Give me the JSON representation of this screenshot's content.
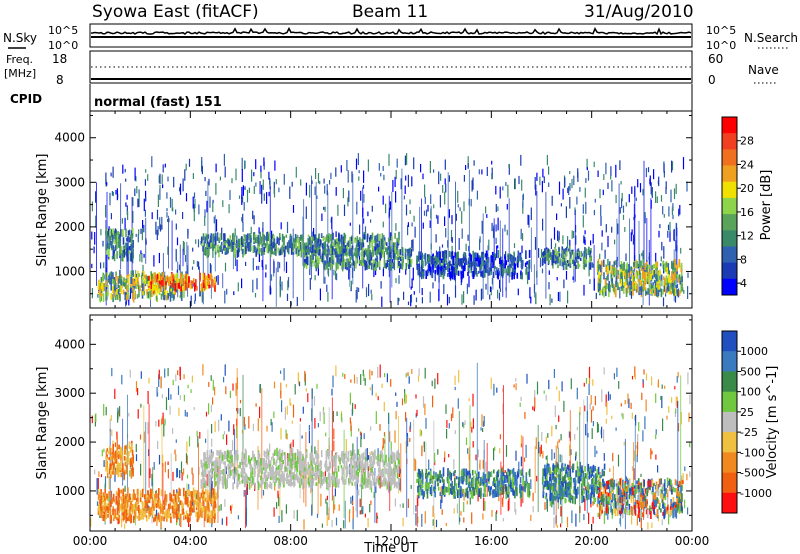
{
  "header": {
    "station": "Syowa East (fitACF)",
    "beam": "Beam 11",
    "date": "31/Aug/2010"
  },
  "noise_panel": {
    "left_label": "N.Sky",
    "right_label": "N.Search",
    "ticks_left": [
      "10^5",
      "10^0"
    ],
    "ticks_right": [
      "10^5",
      "10^0"
    ]
  },
  "freq_panel": {
    "left_label_1": "Freq.",
    "left_label_2": "[MHz]",
    "left_ticks": [
      "18",
      "8"
    ],
    "right_label": "Nave",
    "right_ticks": [
      "60",
      "0"
    ]
  },
  "cpid_panel": {
    "label": "CPID",
    "value": "normal (fast) 151"
  },
  "colors": {
    "power": [
      "#0000ff",
      "#1a3bb4",
      "#3060b0",
      "#3a8a6a",
      "#5aa35a",
      "#8ed44a",
      "#f0e000",
      "#f0a020",
      "#f07020",
      "#f04020",
      "#ff0000"
    ],
    "velocity": [
      "#2050c0",
      "#3a7abf",
      "#3a8a4a",
      "#70c840",
      "#bebebe",
      "#f0c040",
      "#f08a20",
      "#f06010",
      "#ff1010"
    ]
  },
  "chart_data": [
    {
      "type": "heatmap",
      "quantity": "Power",
      "ylabel": "Slant Range [km]",
      "xlabel": "Time UT",
      "x_ticks": [
        "00:00",
        "04:00",
        "08:00",
        "12:00",
        "16:00",
        "20:00",
        "00:00"
      ],
      "y_ticks": [
        1000,
        2000,
        3000,
        4000
      ],
      "xlim": [
        0,
        24
      ],
      "ylim": [
        180,
        4600
      ],
      "colorbar": {
        "label": "Power [dB]",
        "ticks": [
          "28",
          "24",
          "20",
          "16",
          "12",
          "8",
          "4"
        ],
        "range": [
          0,
          30
        ]
      },
      "echo_regions": [
        {
          "t0": 0.3,
          "t1": 3.8,
          "r0": 400,
          "r1": 950,
          "level": "high"
        },
        {
          "t0": 2.3,
          "t1": 5.0,
          "r0": 600,
          "r1": 900,
          "level": "peak"
        },
        {
          "t0": 0.6,
          "t1": 1.7,
          "r0": 1300,
          "r1": 1900,
          "level": "mid"
        },
        {
          "t0": 4.4,
          "t1": 12.3,
          "r0": 1400,
          "r1": 1800,
          "level": "mid"
        },
        {
          "t0": 8.5,
          "t1": 12.8,
          "r0": 1100,
          "r1": 1500,
          "level": "mid"
        },
        {
          "t0": 13.0,
          "t1": 17.5,
          "r0": 900,
          "r1": 1400,
          "level": "low"
        },
        {
          "t0": 18.0,
          "t1": 20.0,
          "r0": 1100,
          "r1": 1500,
          "level": "mid"
        },
        {
          "t0": 20.2,
          "t1": 23.6,
          "r0": 500,
          "r1": 1200,
          "level": "high"
        }
      ]
    },
    {
      "type": "heatmap",
      "quantity": "Velocity",
      "ylabel": "Slant Range [km]",
      "xlabel": "Time UT",
      "x_ticks": [
        "00:00",
        "04:00",
        "08:00",
        "12:00",
        "16:00",
        "20:00",
        "00:00"
      ],
      "y_ticks": [
        1000,
        2000,
        3000,
        4000
      ],
      "xlim": [
        0,
        24
      ],
      "ylim": [
        180,
        4600
      ],
      "colorbar": {
        "label": "Velocity [m s^-1]",
        "ticks": [
          "1000",
          "500",
          "100",
          "25",
          "-25",
          "-100",
          "-500",
          "-1000"
        ],
        "range": [
          -1000,
          1000
        ]
      },
      "echo_regions": [
        {
          "t0": 0.3,
          "t1": 5.0,
          "r0": 400,
          "r1": 1000,
          "level": "negative"
        },
        {
          "t0": 0.6,
          "t1": 1.7,
          "r0": 1300,
          "r1": 1900,
          "level": "negative"
        },
        {
          "t0": 4.4,
          "t1": 12.3,
          "r0": 1100,
          "r1": 1800,
          "level": "near-zero"
        },
        {
          "t0": 13.0,
          "t1": 17.5,
          "r0": 900,
          "r1": 1400,
          "level": "positive"
        },
        {
          "t0": 18.0,
          "t1": 20.5,
          "r0": 800,
          "r1": 1500,
          "level": "positive"
        },
        {
          "t0": 20.2,
          "t1": 23.6,
          "r0": 500,
          "r1": 1200,
          "level": "mixed"
        }
      ]
    }
  ]
}
